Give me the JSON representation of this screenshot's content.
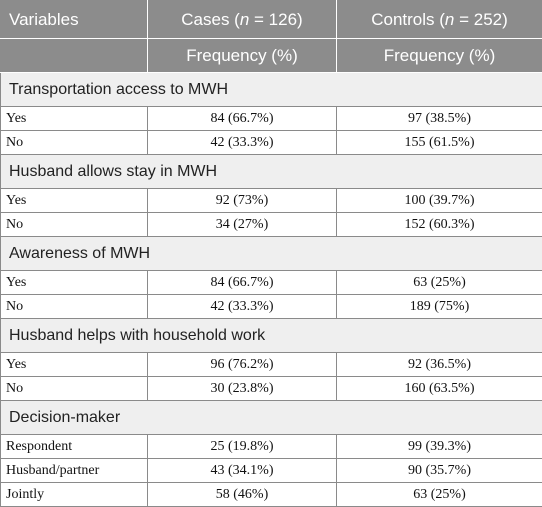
{
  "header": {
    "col1": "Variables",
    "cases_prefix": "Cases (",
    "cases_n": "n",
    "cases_suffix": " = 126)",
    "controls_prefix": "Controls (",
    "controls_n": "n",
    "controls_suffix": " = 252)",
    "cases_sub": "Frequency (%)",
    "controls_sub": "Frequency (%)"
  },
  "sections": [
    {
      "title": "Transportation access to MWH",
      "rows": [
        {
          "label": "Yes",
          "cases": "84 (66.7%)",
          "controls": "97 (38.5%)"
        },
        {
          "label": "No",
          "cases": "42 (33.3%)",
          "controls": "155 (61.5%)"
        }
      ]
    },
    {
      "title": "Husband allows stay in MWH",
      "rows": [
        {
          "label": "Yes",
          "cases": "92 (73%)",
          "controls": "100 (39.7%)"
        },
        {
          "label": "No",
          "cases": "34 (27%)",
          "controls": "152 (60.3%)"
        }
      ]
    },
    {
      "title": "Awareness of MWH",
      "rows": [
        {
          "label": "Yes",
          "cases": "84 (66.7%)",
          "controls": "63 (25%)"
        },
        {
          "label": "No",
          "cases": "42 (33.3%)",
          "controls": "189 (75%)"
        }
      ]
    },
    {
      "title": "Husband helps with household work",
      "rows": [
        {
          "label": "Yes",
          "cases": "96 (76.2%)",
          "controls": "92 (36.5%)"
        },
        {
          "label": "No",
          "cases": "30 (23.8%)",
          "controls": "160 (63.5%)"
        }
      ]
    },
    {
      "title": "Decision-maker",
      "rows": [
        {
          "label": "Respondent",
          "cases": "25 (19.8%)",
          "controls": "99 (39.3%)"
        },
        {
          "label": "Husband/partner",
          "cases": "43 (34.1%)",
          "controls": "90 (35.7%)"
        },
        {
          "label": "Jointly",
          "cases": "58 (46%)",
          "controls": "63 (25%)"
        }
      ]
    }
  ]
}
